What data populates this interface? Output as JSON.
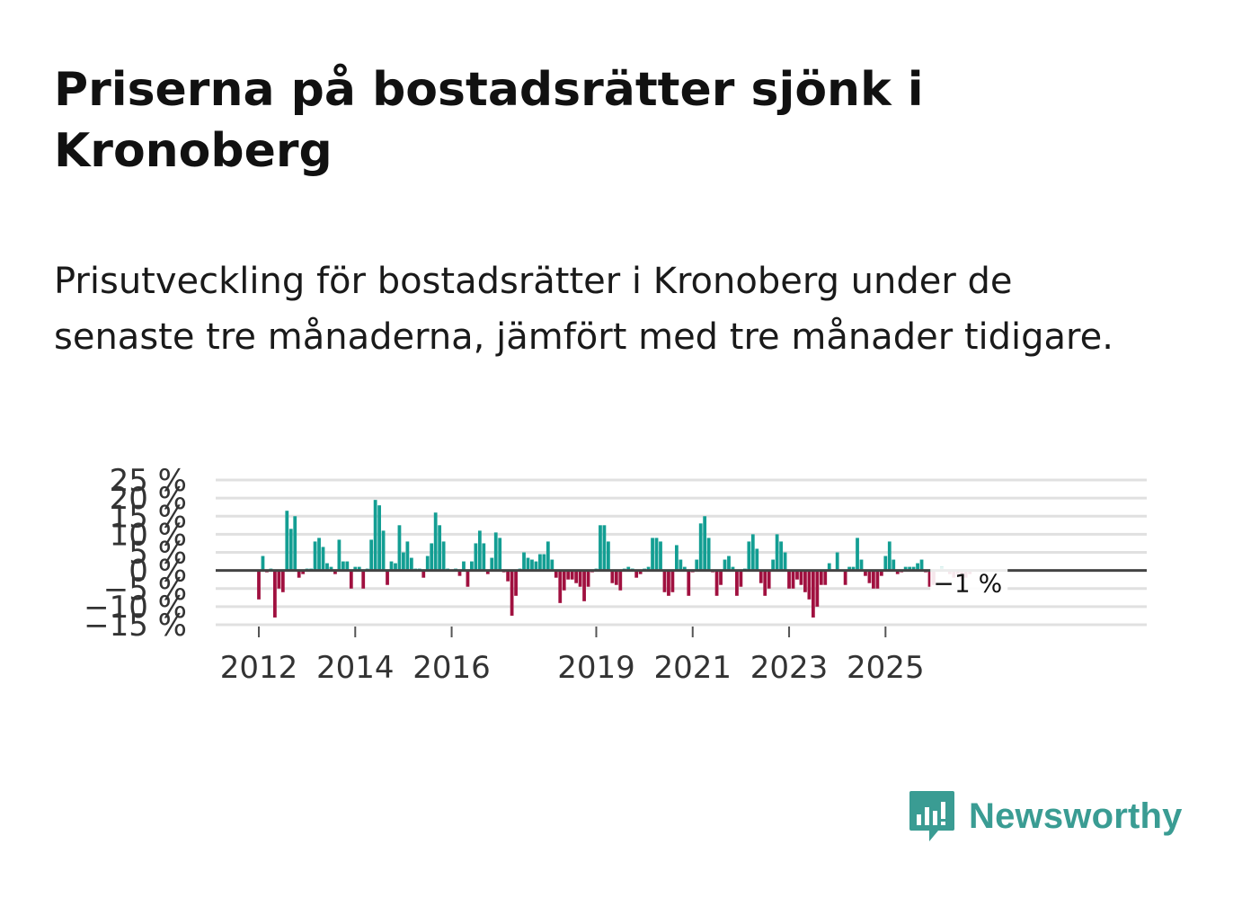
{
  "title": "Priserna på bostadsrätter sjönk i Kronoberg",
  "subtitle": "Prisutveckling för bostadsrätter i Kronoberg under de senaste tre månaderna, jämfört med tre månader tidigare.",
  "brand": {
    "name": "Newsworthy",
    "icon": "newsworthy-bar-chart-icon",
    "color": "#3a9c93"
  },
  "colors": {
    "positive": "#139e93",
    "negative": "#a0103f",
    "grid": "#e0e0e0",
    "zero": "#444444"
  },
  "chart_data": {
    "type": "bar",
    "title": "",
    "xlabel": "",
    "ylabel": "",
    "ylim": [
      -15,
      25
    ],
    "y_ticks": [
      25,
      20,
      15,
      10,
      5,
      0,
      -5,
      -10,
      -15
    ],
    "y_tick_labels": [
      "25 %",
      "20 %",
      "15 %",
      "10 %",
      "5 %",
      "0 %",
      "−5 %",
      "−10 %",
      "−15 %"
    ],
    "x_ticks": [
      {
        "label": "2012",
        "year": 2012.0
      },
      {
        "label": "2014",
        "year": 2014.0
      },
      {
        "label": "2016",
        "year": 2016.0
      },
      {
        "label": "2019",
        "year": 2019.0
      },
      {
        "label": "2021",
        "year": 2021.0
      },
      {
        "label": "2023",
        "year": 2023.0
      },
      {
        "label": "2025",
        "year": 2025.0
      }
    ],
    "start_year": 2012,
    "months_per_bar": 1,
    "values": [
      -8,
      4,
      -0.5,
      0.5,
      -13,
      -5,
      -6,
      16.5,
      11.5,
      15,
      -2,
      -1,
      0.5,
      0.5,
      8,
      9,
      6.5,
      2,
      1,
      -1,
      8.5,
      2.5,
      2.5,
      -5,
      1,
      1,
      -5,
      0.5,
      8.5,
      19.5,
      18,
      11,
      -4,
      2.5,
      2,
      12.5,
      5,
      8,
      3.5,
      0.5,
      0.5,
      -2,
      4,
      7.5,
      16,
      12.5,
      8,
      0.5,
      0,
      0.5,
      -1.5,
      2.5,
      -4.5,
      2.5,
      7.5,
      11,
      7.5,
      -1,
      3.5,
      10.5,
      9,
      -0.5,
      -3,
      -12.5,
      -7,
      0.5,
      5,
      3.5,
      3,
      2.5,
      4.5,
      4.5,
      8,
      3,
      -2,
      -9,
      -5.5,
      -2.5,
      -2.5,
      -3.5,
      -4.5,
      -8.5,
      -4.5,
      -0.5,
      0.5,
      12.5,
      12.5,
      8,
      -3.5,
      -4,
      -5.5,
      0.5,
      1,
      0.5,
      -2,
      -1,
      0.5,
      1,
      9,
      9,
      8,
      -6,
      -7,
      -6,
      7,
      3,
      1,
      -7,
      -0.5,
      3,
      13,
      15,
      9,
      -0.5,
      -7,
      -4,
      3,
      4,
      1,
      -7,
      -4.5,
      0.5,
      8,
      10,
      6,
      -3.5,
      -7,
      -5,
      3,
      10,
      8,
      5,
      -5,
      -5,
      -2.5,
      -4,
      -6,
      -8,
      -13,
      -10,
      -4,
      -4,
      2,
      0,
      5,
      0,
      -4,
      1,
      1,
      9,
      3,
      -1.5,
      -3.5,
      -5,
      -5,
      -1.5,
      4,
      8,
      3,
      -1,
      -0.5,
      1,
      1,
      1,
      2,
      3,
      -0.5,
      -4.5,
      -4,
      0,
      1,
      0,
      -1,
      -2,
      -1,
      -2.5,
      -2,
      -1
    ],
    "annotation": {
      "label": "−1 %",
      "target": "last"
    }
  }
}
